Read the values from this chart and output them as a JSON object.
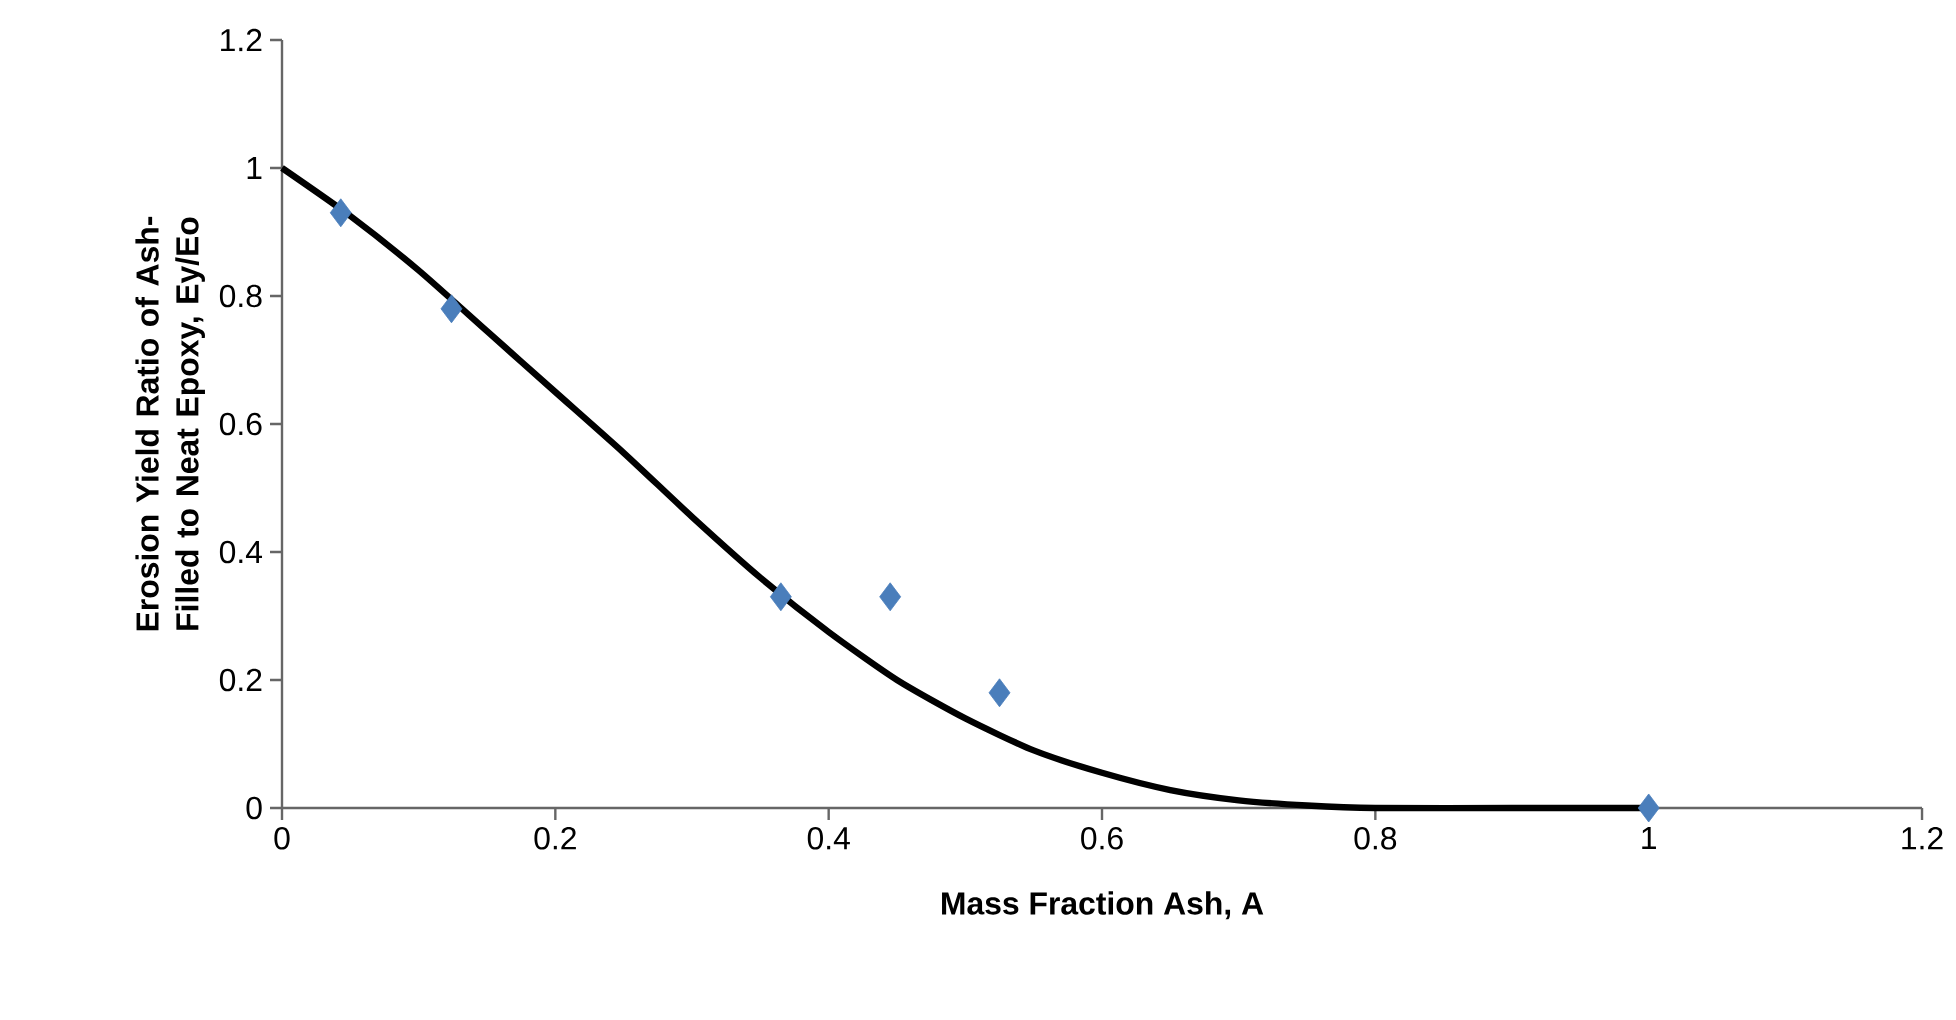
{
  "chart_data": {
    "type": "scatter",
    "xlabel": "Mass Fraction Ash, A",
    "ylabel": "Erosion Yield Ratio of Ash-Filled to Neat Epoxy,    Ey/Eo",
    "xlim": [
      0,
      1.2
    ],
    "ylim": [
      0,
      1.2
    ],
    "xticks": [
      0,
      0.2,
      0.4,
      0.6,
      0.8,
      1,
      1.2
    ],
    "yticks": [
      0,
      0.2,
      0.4,
      0.6,
      0.8,
      1,
      1.2
    ],
    "grid": false,
    "marker": "diamond",
    "series": [
      {
        "color": "#4a7ebb",
        "x": [
          0.043,
          0.124,
          0.365,
          0.445,
          0.525,
          1.0
        ],
        "values": [
          0.93,
          0.78,
          0.33,
          0.33,
          0.18,
          0.0
        ]
      },
      {
        "type": "line",
        "marker": "none",
        "color": "#000000",
        "x": [
          0,
          0.05,
          0.1,
          0.15,
          0.2,
          0.25,
          0.3,
          0.35,
          0.4,
          0.45,
          0.5,
          0.55,
          0.6,
          0.65,
          0.7,
          0.75,
          0.8,
          0.9,
          1.0
        ],
        "values": [
          1.0,
          0.925,
          0.84,
          0.745,
          0.65,
          0.555,
          0.455,
          0.36,
          0.275,
          0.2,
          0.14,
          0.09,
          0.055,
          0.028,
          0.012,
          0.004,
          0.0,
          0.0,
          0.0
        ]
      }
    ]
  }
}
